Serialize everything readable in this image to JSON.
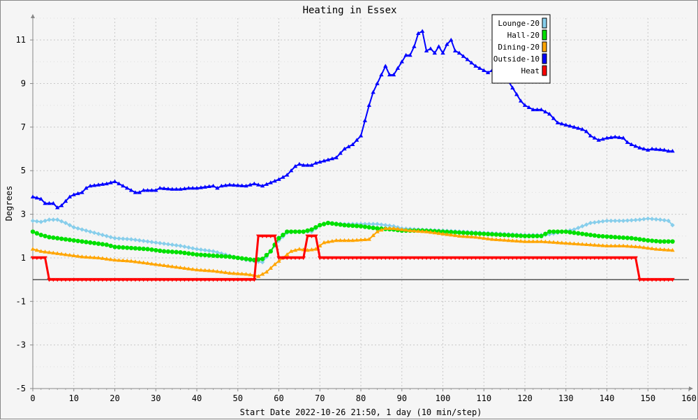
{
  "chart_data": {
    "type": "line",
    "title": "Heating in Essex",
    "xlabel": "Start Date 2022-10-26 21:50, 1 day (10 min/step)",
    "ylabel": "Degrees",
    "xlim": [
      0,
      160
    ],
    "ylim": [
      -5,
      12
    ],
    "x_ticks": [
      "0",
      "10",
      "20",
      "30",
      "40",
      "50",
      "60",
      "70",
      "80",
      "90",
      "100",
      "110",
      "120",
      "130",
      "140",
      "150",
      "160"
    ],
    "y_ticks": [
      "-5",
      "-3",
      "-1",
      "1",
      "3",
      "5",
      "7",
      "9",
      "11"
    ],
    "grid": true,
    "legend_position": "top-right",
    "series": [
      {
        "name": "Lounge-20",
        "color": "#87ceeb",
        "marker": "diamond",
        "points": [
          [
            0,
            2.7
          ],
          [
            2,
            2.65
          ],
          [
            4,
            2.75
          ],
          [
            6,
            2.75
          ],
          [
            8,
            2.6
          ],
          [
            10,
            2.4
          ],
          [
            12,
            2.3
          ],
          [
            14,
            2.2
          ],
          [
            16,
            2.1
          ],
          [
            18,
            2.0
          ],
          [
            20,
            1.9
          ],
          [
            24,
            1.85
          ],
          [
            28,
            1.75
          ],
          [
            32,
            1.65
          ],
          [
            36,
            1.55
          ],
          [
            40,
            1.4
          ],
          [
            44,
            1.3
          ],
          [
            48,
            1.1
          ],
          [
            50,
            1.0
          ],
          [
            52,
            0.9
          ],
          [
            54,
            0.85
          ],
          [
            56,
            0.8
          ],
          [
            58,
            1.3
          ],
          [
            60,
            1.8
          ],
          [
            62,
            2.15
          ],
          [
            64,
            2.2
          ],
          [
            66,
            2.2
          ],
          [
            68,
            2.2
          ],
          [
            70,
            2.5
          ],
          [
            72,
            2.6
          ],
          [
            76,
            2.55
          ],
          [
            80,
            2.55
          ],
          [
            84,
            2.55
          ],
          [
            88,
            2.45
          ],
          [
            90,
            2.35
          ],
          [
            94,
            2.3
          ],
          [
            100,
            2.25
          ],
          [
            105,
            2.2
          ],
          [
            110,
            2.15
          ],
          [
            115,
            2.1
          ],
          [
            120,
            2.05
          ],
          [
            125,
            2.05
          ],
          [
            128,
            2.15
          ],
          [
            132,
            2.3
          ],
          [
            136,
            2.6
          ],
          [
            140,
            2.7
          ],
          [
            144,
            2.7
          ],
          [
            148,
            2.75
          ],
          [
            150,
            2.8
          ],
          [
            153,
            2.75
          ],
          [
            155,
            2.7
          ],
          [
            156,
            2.5
          ]
        ]
      },
      {
        "name": "Hall-20",
        "color": "#00e000",
        "marker": "circle",
        "points": [
          [
            0,
            2.2
          ],
          [
            2,
            2.05
          ],
          [
            4,
            1.95
          ],
          [
            6,
            1.9
          ],
          [
            8,
            1.85
          ],
          [
            10,
            1.8
          ],
          [
            14,
            1.7
          ],
          [
            18,
            1.6
          ],
          [
            20,
            1.5
          ],
          [
            24,
            1.45
          ],
          [
            28,
            1.4
          ],
          [
            32,
            1.3
          ],
          [
            36,
            1.25
          ],
          [
            40,
            1.15
          ],
          [
            44,
            1.1
          ],
          [
            48,
            1.05
          ],
          [
            52,
            0.95
          ],
          [
            54,
            0.9
          ],
          [
            56,
            0.95
          ],
          [
            58,
            1.3
          ],
          [
            60,
            1.9
          ],
          [
            62,
            2.2
          ],
          [
            64,
            2.2
          ],
          [
            66,
            2.2
          ],
          [
            68,
            2.3
          ],
          [
            70,
            2.5
          ],
          [
            72,
            2.6
          ],
          [
            76,
            2.5
          ],
          [
            80,
            2.45
          ],
          [
            84,
            2.35
          ],
          [
            88,
            2.3
          ],
          [
            90,
            2.25
          ],
          [
            95,
            2.25
          ],
          [
            100,
            2.2
          ],
          [
            105,
            2.15
          ],
          [
            110,
            2.1
          ],
          [
            115,
            2.05
          ],
          [
            120,
            2.0
          ],
          [
            124,
            2.0
          ],
          [
            126,
            2.2
          ],
          [
            130,
            2.2
          ],
          [
            134,
            2.1
          ],
          [
            138,
            2.0
          ],
          [
            142,
            1.95
          ],
          [
            146,
            1.9
          ],
          [
            150,
            1.8
          ],
          [
            153,
            1.75
          ],
          [
            156,
            1.75
          ]
        ]
      },
      {
        "name": "Dining-20",
        "color": "#ffa500",
        "marker": "triangle",
        "points": [
          [
            0,
            1.4
          ],
          [
            2,
            1.3
          ],
          [
            4,
            1.25
          ],
          [
            8,
            1.15
          ],
          [
            12,
            1.05
          ],
          [
            16,
            1.0
          ],
          [
            20,
            0.9
          ],
          [
            24,
            0.85
          ],
          [
            28,
            0.75
          ],
          [
            32,
            0.65
          ],
          [
            36,
            0.55
          ],
          [
            40,
            0.45
          ],
          [
            44,
            0.4
          ],
          [
            48,
            0.3
          ],
          [
            52,
            0.25
          ],
          [
            54,
            0.2
          ],
          [
            55,
            0.15
          ],
          [
            57,
            0.35
          ],
          [
            59,
            0.7
          ],
          [
            61,
            1.0
          ],
          [
            63,
            1.3
          ],
          [
            65,
            1.4
          ],
          [
            67,
            1.35
          ],
          [
            69,
            1.4
          ],
          [
            71,
            1.7
          ],
          [
            74,
            1.8
          ],
          [
            78,
            1.8
          ],
          [
            82,
            1.85
          ],
          [
            84,
            2.2
          ],
          [
            86,
            2.35
          ],
          [
            88,
            2.35
          ],
          [
            92,
            2.25
          ],
          [
            96,
            2.2
          ],
          [
            100,
            2.1
          ],
          [
            104,
            2.0
          ],
          [
            108,
            1.95
          ],
          [
            112,
            1.85
          ],
          [
            116,
            1.8
          ],
          [
            120,
            1.75
          ],
          [
            124,
            1.75
          ],
          [
            128,
            1.7
          ],
          [
            132,
            1.65
          ],
          [
            136,
            1.6
          ],
          [
            140,
            1.55
          ],
          [
            144,
            1.55
          ],
          [
            148,
            1.5
          ],
          [
            152,
            1.4
          ],
          [
            156,
            1.35
          ]
        ]
      },
      {
        "name": "Outside-10",
        "color": "#0000ff",
        "marker": "triangle",
        "points": [
          [
            0,
            3.8
          ],
          [
            2,
            3.7
          ],
          [
            3,
            3.5
          ],
          [
            5,
            3.5
          ],
          [
            6,
            3.3
          ],
          [
            7,
            3.4
          ],
          [
            8,
            3.6
          ],
          [
            9,
            3.8
          ],
          [
            10,
            3.9
          ],
          [
            12,
            4.0
          ],
          [
            13,
            4.2
          ],
          [
            14,
            4.3
          ],
          [
            16,
            4.35
          ],
          [
            18,
            4.4
          ],
          [
            20,
            4.5
          ],
          [
            21,
            4.4
          ],
          [
            22,
            4.3
          ],
          [
            24,
            4.1
          ],
          [
            25,
            4.0
          ],
          [
            26,
            4.0
          ],
          [
            27,
            4.1
          ],
          [
            30,
            4.1
          ],
          [
            31,
            4.2
          ],
          [
            34,
            4.15
          ],
          [
            36,
            4.15
          ],
          [
            38,
            4.2
          ],
          [
            40,
            4.2
          ],
          [
            42,
            4.25
          ],
          [
            44,
            4.3
          ],
          [
            45,
            4.2
          ],
          [
            46,
            4.3
          ],
          [
            48,
            4.35
          ],
          [
            52,
            4.3
          ],
          [
            54,
            4.4
          ],
          [
            56,
            4.3
          ],
          [
            58,
            4.45
          ],
          [
            60,
            4.6
          ],
          [
            62,
            4.8
          ],
          [
            63,
            5.0
          ],
          [
            64,
            5.2
          ],
          [
            65,
            5.3
          ],
          [
            66,
            5.25
          ],
          [
            68,
            5.25
          ],
          [
            69,
            5.35
          ],
          [
            70,
            5.4
          ],
          [
            72,
            5.5
          ],
          [
            74,
            5.6
          ],
          [
            75,
            5.8
          ],
          [
            76,
            6.0
          ],
          [
            77,
            6.1
          ],
          [
            78,
            6.2
          ],
          [
            79,
            6.4
          ],
          [
            80,
            6.6
          ],
          [
            81,
            7.3
          ],
          [
            82,
            8.0
          ],
          [
            83,
            8.6
          ],
          [
            84,
            9.0
          ],
          [
            85,
            9.4
          ],
          [
            86,
            9.8
          ],
          [
            87,
            9.4
          ],
          [
            88,
            9.4
          ],
          [
            89,
            9.7
          ],
          [
            90,
            10.0
          ],
          [
            91,
            10.3
          ],
          [
            92,
            10.3
          ],
          [
            93,
            10.7
          ],
          [
            94,
            11.3
          ],
          [
            95,
            11.4
          ],
          [
            96,
            10.5
          ],
          [
            97,
            10.6
          ],
          [
            98,
            10.4
          ],
          [
            99,
            10.7
          ],
          [
            100,
            10.4
          ],
          [
            101,
            10.8
          ],
          [
            102,
            11.0
          ],
          [
            103,
            10.5
          ],
          [
            104,
            10.4
          ],
          [
            106,
            10.1
          ],
          [
            108,
            9.8
          ],
          [
            110,
            9.6
          ],
          [
            111,
            9.5
          ],
          [
            112,
            9.6
          ],
          [
            113,
            9.6
          ],
          [
            114,
            9.5
          ],
          [
            115,
            9.4
          ],
          [
            116,
            9.1
          ],
          [
            117,
            8.8
          ],
          [
            118,
            8.5
          ],
          [
            119,
            8.2
          ],
          [
            120,
            8.0
          ],
          [
            121,
            7.9
          ],
          [
            122,
            7.8
          ],
          [
            124,
            7.8
          ],
          [
            125,
            7.7
          ],
          [
            126,
            7.6
          ],
          [
            127,
            7.4
          ],
          [
            128,
            7.2
          ],
          [
            130,
            7.1
          ],
          [
            132,
            7.0
          ],
          [
            134,
            6.9
          ],
          [
            135,
            6.8
          ],
          [
            136,
            6.6
          ],
          [
            137,
            6.5
          ],
          [
            138,
            6.4
          ],
          [
            140,
            6.5
          ],
          [
            142,
            6.55
          ],
          [
            144,
            6.5
          ],
          [
            145,
            6.3
          ],
          [
            146,
            6.2
          ],
          [
            148,
            6.05
          ],
          [
            150,
            5.95
          ],
          [
            151,
            6.0
          ],
          [
            154,
            5.95
          ],
          [
            155,
            5.9
          ],
          [
            156,
            5.9
          ]
        ]
      },
      {
        "name": "Heat",
        "color": "#ff0000",
        "marker": "down-triangle",
        "points": [
          [
            0,
            1.0
          ],
          [
            3,
            1.0
          ],
          [
            4,
            0
          ],
          [
            54,
            0
          ],
          [
            55,
            2.0
          ],
          [
            59,
            2.0
          ],
          [
            60,
            1.0
          ],
          [
            66,
            1.0
          ],
          [
            67,
            2.0
          ],
          [
            69,
            2.0
          ],
          [
            70,
            1.0
          ],
          [
            147,
            1.0
          ],
          [
            148,
            0
          ],
          [
            156,
            0
          ]
        ]
      }
    ]
  }
}
